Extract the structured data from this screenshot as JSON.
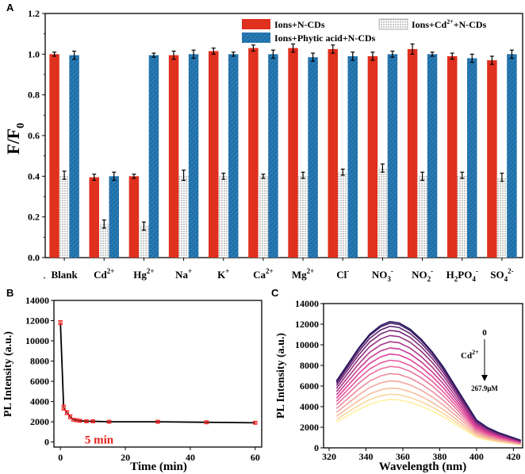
{
  "colors": {
    "red": "#e0301e",
    "blue": "#1f6fa8",
    "dot": "#888888",
    "line_b": "#000000",
    "err_b": "#ff3030",
    "annot": "#e8201c"
  },
  "chart_data": [
    {
      "panel": "A",
      "type": "bar",
      "ylabel": "F/F",
      "ylabel_sub": "0",
      "ylim": [
        0.0,
        1.2
      ],
      "yticks": [
        "0.0",
        "0.2",
        "0.4",
        "0.6",
        "0.8",
        "1.0",
        "1.2"
      ],
      "categories": [
        {
          "base": "Blank",
          "sup": "",
          "sub": "",
          "sup2": ""
        },
        {
          "base": "Cd",
          "sup": "2+",
          "sub": "",
          "sup2": ""
        },
        {
          "base": "Hg",
          "sup": "2+",
          "sub": "",
          "sup2": ""
        },
        {
          "base": "Na",
          "sup": "+",
          "sub": "",
          "sup2": ""
        },
        {
          "base": "K",
          "sup": "+",
          "sub": "",
          "sup2": ""
        },
        {
          "base": "Ca",
          "sup": "2+",
          "sub": "",
          "sup2": ""
        },
        {
          "base": "Mg",
          "sup": "2+",
          "sub": "",
          "sup2": ""
        },
        {
          "base": "Cl",
          "sup": "-",
          "sub": "",
          "sup2": ""
        },
        {
          "base": "NO",
          "sup": "",
          "sub": "3",
          "sup2": "-"
        },
        {
          "base": "NO",
          "sup": "",
          "sub": "2",
          "sup2": "-"
        },
        {
          "base": "H",
          "sup": "",
          "sub": "2",
          "sup2": "",
          "base2": "PO",
          "sub2": "4",
          "sup3": "-"
        },
        {
          "base": "SO",
          "sup": "",
          "sub": "4",
          "sup2": "2-"
        }
      ],
      "legend": [
        {
          "key": "red",
          "text": "Ions+N-CDs"
        },
        {
          "key": "dot",
          "text": "Ions+Cd",
          "sup": "2+",
          "rest": "+N-CDs"
        },
        {
          "key": "blue",
          "text": "Ions+Phytic acid+N-CDs"
        }
      ],
      "series": [
        {
          "name": "Ions+N-CDs",
          "values": [
            1.0,
            0.395,
            0.4,
            0.995,
            1.015,
            1.03,
            1.03,
            1.025,
            0.99,
            1.025,
            0.99,
            0.97
          ],
          "errors": [
            0.01,
            0.015,
            0.01,
            0.02,
            0.015,
            0.015,
            0.02,
            0.02,
            0.02,
            0.025,
            0.015,
            0.02
          ]
        },
        {
          "name": "Ions+Cd2++N-CDs",
          "values": [
            0.405,
            0.165,
            0.155,
            0.405,
            0.4,
            0.4,
            0.405,
            0.42,
            0.44,
            0.4,
            0.405,
            0.395
          ],
          "errors": [
            0.02,
            0.02,
            0.02,
            0.025,
            0.015,
            0.01,
            0.015,
            0.015,
            0.02,
            0.02,
            0.015,
            0.02
          ]
        },
        {
          "name": "Ions+Phytic acid+N-CDs",
          "values": [
            0.995,
            0.4,
            0.995,
            1.0,
            1.0,
            1.0,
            0.985,
            0.99,
            1.0,
            1.0,
            0.98,
            1.0
          ],
          "errors": [
            0.02,
            0.02,
            0.01,
            0.02,
            0.01,
            0.02,
            0.02,
            0.02,
            0.015,
            0.01,
            0.02,
            0.02
          ]
        }
      ]
    },
    {
      "panel": "B",
      "type": "line",
      "xlabel": "Time (min)",
      "ylabel": "PL Intensity (a.u.)",
      "xlim": [
        -2,
        62
      ],
      "ylim": [
        -500,
        14000
      ],
      "xticks": [
        "0",
        "20",
        "40",
        "60"
      ],
      "yticks": [
        "0",
        "2000",
        "4000",
        "6000",
        "8000",
        "10000",
        "12000",
        "14000"
      ],
      "x": [
        0,
        1,
        2,
        3,
        4,
        5,
        6,
        8,
        10,
        15,
        30,
        45,
        60
      ],
      "y": [
        11800,
        3400,
        2900,
        2500,
        2200,
        2150,
        2100,
        2050,
        2050,
        2000,
        2000,
        1950,
        1900
      ],
      "errors": [
        200,
        250,
        200,
        200,
        150,
        150,
        120,
        120,
        120,
        120,
        120,
        120,
        120
      ],
      "annotation": "5 min"
    },
    {
      "panel": "C",
      "type": "line",
      "xlabel": "Wavelength (nm)",
      "ylabel": "PL Intensity (a.u.)",
      "xlim": [
        317,
        425
      ],
      "ylim": [
        0,
        14000
      ],
      "xticks": [
        "320",
        "340",
        "360",
        "380",
        "400",
        "420"
      ],
      "yticks": [
        "0",
        "2000",
        "4000",
        "6000",
        "8000",
        "10000",
        "12000",
        "14000"
      ],
      "x": [
        324,
        330,
        336,
        342,
        348,
        353,
        358,
        364,
        370,
        376,
        382,
        388,
        394,
        400,
        406,
        412,
        418,
        424
      ],
      "peaks": [
        12250,
        12100,
        11800,
        11400,
        10900,
        10300,
        9700,
        9100,
        8500,
        7900,
        7200,
        6500,
        5800,
        5200,
        4700
      ],
      "profile": [
        0.53,
        0.66,
        0.79,
        0.9,
        0.97,
        1.0,
        0.99,
        0.94,
        0.86,
        0.76,
        0.64,
        0.5,
        0.36,
        0.22,
        0.16,
        0.12,
        0.09,
        0.06
      ],
      "annotation_top": "0",
      "annotation_ion": "Cd",
      "annotation_ion_sup": "2+",
      "annotation_bottom": "267.9μM",
      "gradient_start": "#2a1a60",
      "gradient_mid": "#e0409a",
      "gradient_end": "#fff0a0"
    }
  ]
}
